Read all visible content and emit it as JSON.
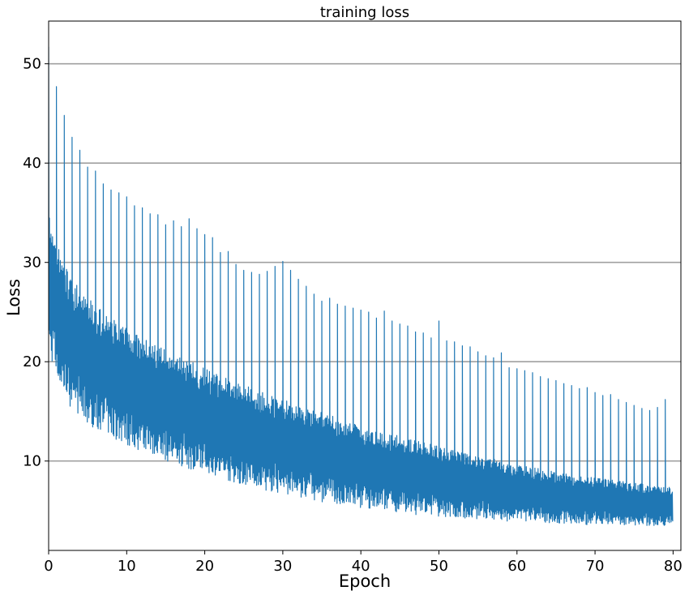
{
  "chart_data": {
    "type": "line",
    "title": "training loss",
    "xlabel": "Epoch",
    "ylabel": "Loss",
    "xlim": [
      0,
      81
    ],
    "ylim": [
      1,
      54.3
    ],
    "grid": "y-major",
    "color": "#1f77b4",
    "xticks": [
      0,
      10,
      20,
      30,
      40,
      50,
      60,
      70,
      80
    ],
    "xtick_labels": [
      "0",
      "10",
      "20",
      "30",
      "40",
      "50",
      "60",
      "70",
      "80"
    ],
    "yticks": [
      10,
      20,
      30,
      40,
      50
    ],
    "ytick_labels": [
      "10",
      "20",
      "30",
      "40",
      "50"
    ],
    "series": [
      {
        "epoch_start": [
          0,
          1,
          2,
          3,
          4,
          5,
          6,
          7,
          8,
          9,
          10,
          11,
          12,
          13,
          14,
          15,
          16,
          17,
          18,
          19,
          20,
          21,
          22,
          23,
          24,
          25,
          26,
          27,
          28,
          29,
          30,
          31,
          32,
          33,
          34,
          35,
          36,
          37,
          38,
          39,
          40,
          41,
          42,
          43,
          44,
          45,
          46,
          47,
          48,
          49,
          50,
          51,
          52,
          53,
          54,
          55,
          56,
          57,
          58,
          59,
          60,
          61,
          62,
          63,
          64,
          65,
          66,
          67,
          68,
          69,
          70,
          71,
          72,
          73,
          74,
          75,
          76,
          77,
          78,
          79
        ],
        "peak": [
          51.7,
          47.7,
          44.8,
          42.6,
          41.3,
          39.6,
          39.2,
          37.9,
          37.3,
          37.0,
          36.6,
          35.7,
          35.5,
          34.9,
          34.8,
          33.8,
          34.2,
          33.6,
          34.4,
          33.4,
          32.8,
          32.5,
          31.0,
          31.1,
          29.8,
          29.2,
          29.0,
          28.8,
          29.1,
          29.6,
          30.1,
          29.2,
          28.3,
          27.6,
          26.8,
          26.1,
          26.4,
          25.8,
          25.6,
          25.4,
          25.2,
          25.0,
          24.4,
          25.1,
          24.1,
          23.8,
          23.6,
          23.0,
          22.9,
          22.4,
          24.1,
          22.1,
          22.0,
          21.6,
          21.5,
          21.0,
          20.6,
          20.4,
          20.9,
          19.4,
          19.3,
          19.1,
          18.9,
          18.5,
          18.3,
          18.1,
          17.8,
          17.6,
          17.3,
          17.4,
          16.9,
          16.6,
          16.7,
          16.2,
          15.9,
          15.6,
          15.3,
          15.1,
          15.4,
          16.2
        ],
        "upper": [
          35.5,
          32.0,
          30.0,
          28.5,
          27.3,
          26.5,
          25.7,
          25.0,
          24.4,
          23.9,
          23.4,
          22.9,
          22.4,
          22.0,
          21.6,
          21.2,
          20.8,
          20.4,
          20.1,
          19.7,
          19.3,
          19.0,
          18.6,
          18.3,
          18.0,
          17.7,
          17.4,
          17.1,
          16.8,
          16.5,
          16.2,
          15.9,
          15.7,
          15.4,
          15.1,
          14.9,
          14.6,
          14.4,
          14.1,
          13.9,
          13.6,
          13.4,
          13.2,
          12.9,
          12.7,
          12.5,
          12.3,
          12.1,
          11.9,
          11.7,
          11.5,
          11.3,
          11.1,
          10.9,
          10.7,
          10.5,
          10.4,
          10.2,
          10.0,
          9.9,
          9.7,
          9.6,
          9.4,
          9.3,
          9.1,
          9.0,
          8.8,
          8.7,
          8.6,
          8.4,
          8.3,
          8.2,
          8.1,
          8.0,
          7.9,
          7.8,
          7.7,
          7.6,
          7.5,
          7.4
        ],
        "lower": [
          21.0,
          18.5,
          16.5,
          15.2,
          14.5,
          13.8,
          13.2,
          12.8,
          12.4,
          12.0,
          11.6,
          11.3,
          10.9,
          10.6,
          10.3,
          10.0,
          9.7,
          9.5,
          9.2,
          8.9,
          8.7,
          8.5,
          8.2,
          8.0,
          7.8,
          7.6,
          7.4,
          7.2,
          7.0,
          6.8,
          6.7,
          6.5,
          6.4,
          6.2,
          6.1,
          5.9,
          5.8,
          5.7,
          5.6,
          5.4,
          5.3,
          5.2,
          5.1,
          5.0,
          4.9,
          4.8,
          4.7,
          4.6,
          4.6,
          4.5,
          4.4,
          4.3,
          4.3,
          4.2,
          4.2,
          4.1,
          4.1,
          4.0,
          4.0,
          3.9,
          3.9,
          3.9,
          3.8,
          3.8,
          3.8,
          3.7,
          3.7,
          3.7,
          3.7,
          3.6,
          3.6,
          3.6,
          3.6,
          3.6,
          3.5,
          3.5,
          3.5,
          3.5,
          3.5,
          3.5
        ]
      }
    ]
  }
}
